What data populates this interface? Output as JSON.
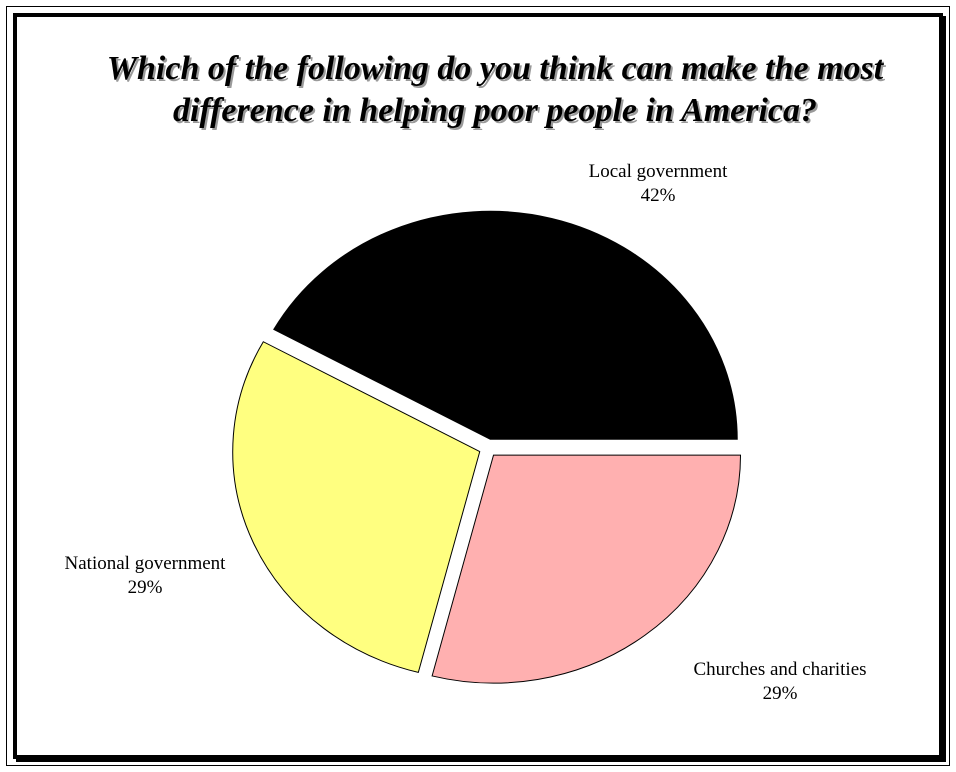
{
  "chart_data": {
    "type": "pie",
    "title": "Which of the following do you think can make the most\ndifference in helping poor people in America?",
    "slices": [
      {
        "label": "Local government",
        "value": 42,
        "value_label": "42%",
        "color": "#000000"
      },
      {
        "label": "Churches and charities",
        "value": 29,
        "value_label": "29%",
        "color": "#ffff80"
      },
      {
        "label": "National government",
        "value": 29,
        "value_label": "29%",
        "color": "#ffb0b0"
      }
    ],
    "exploded": true,
    "legend": "none"
  }
}
